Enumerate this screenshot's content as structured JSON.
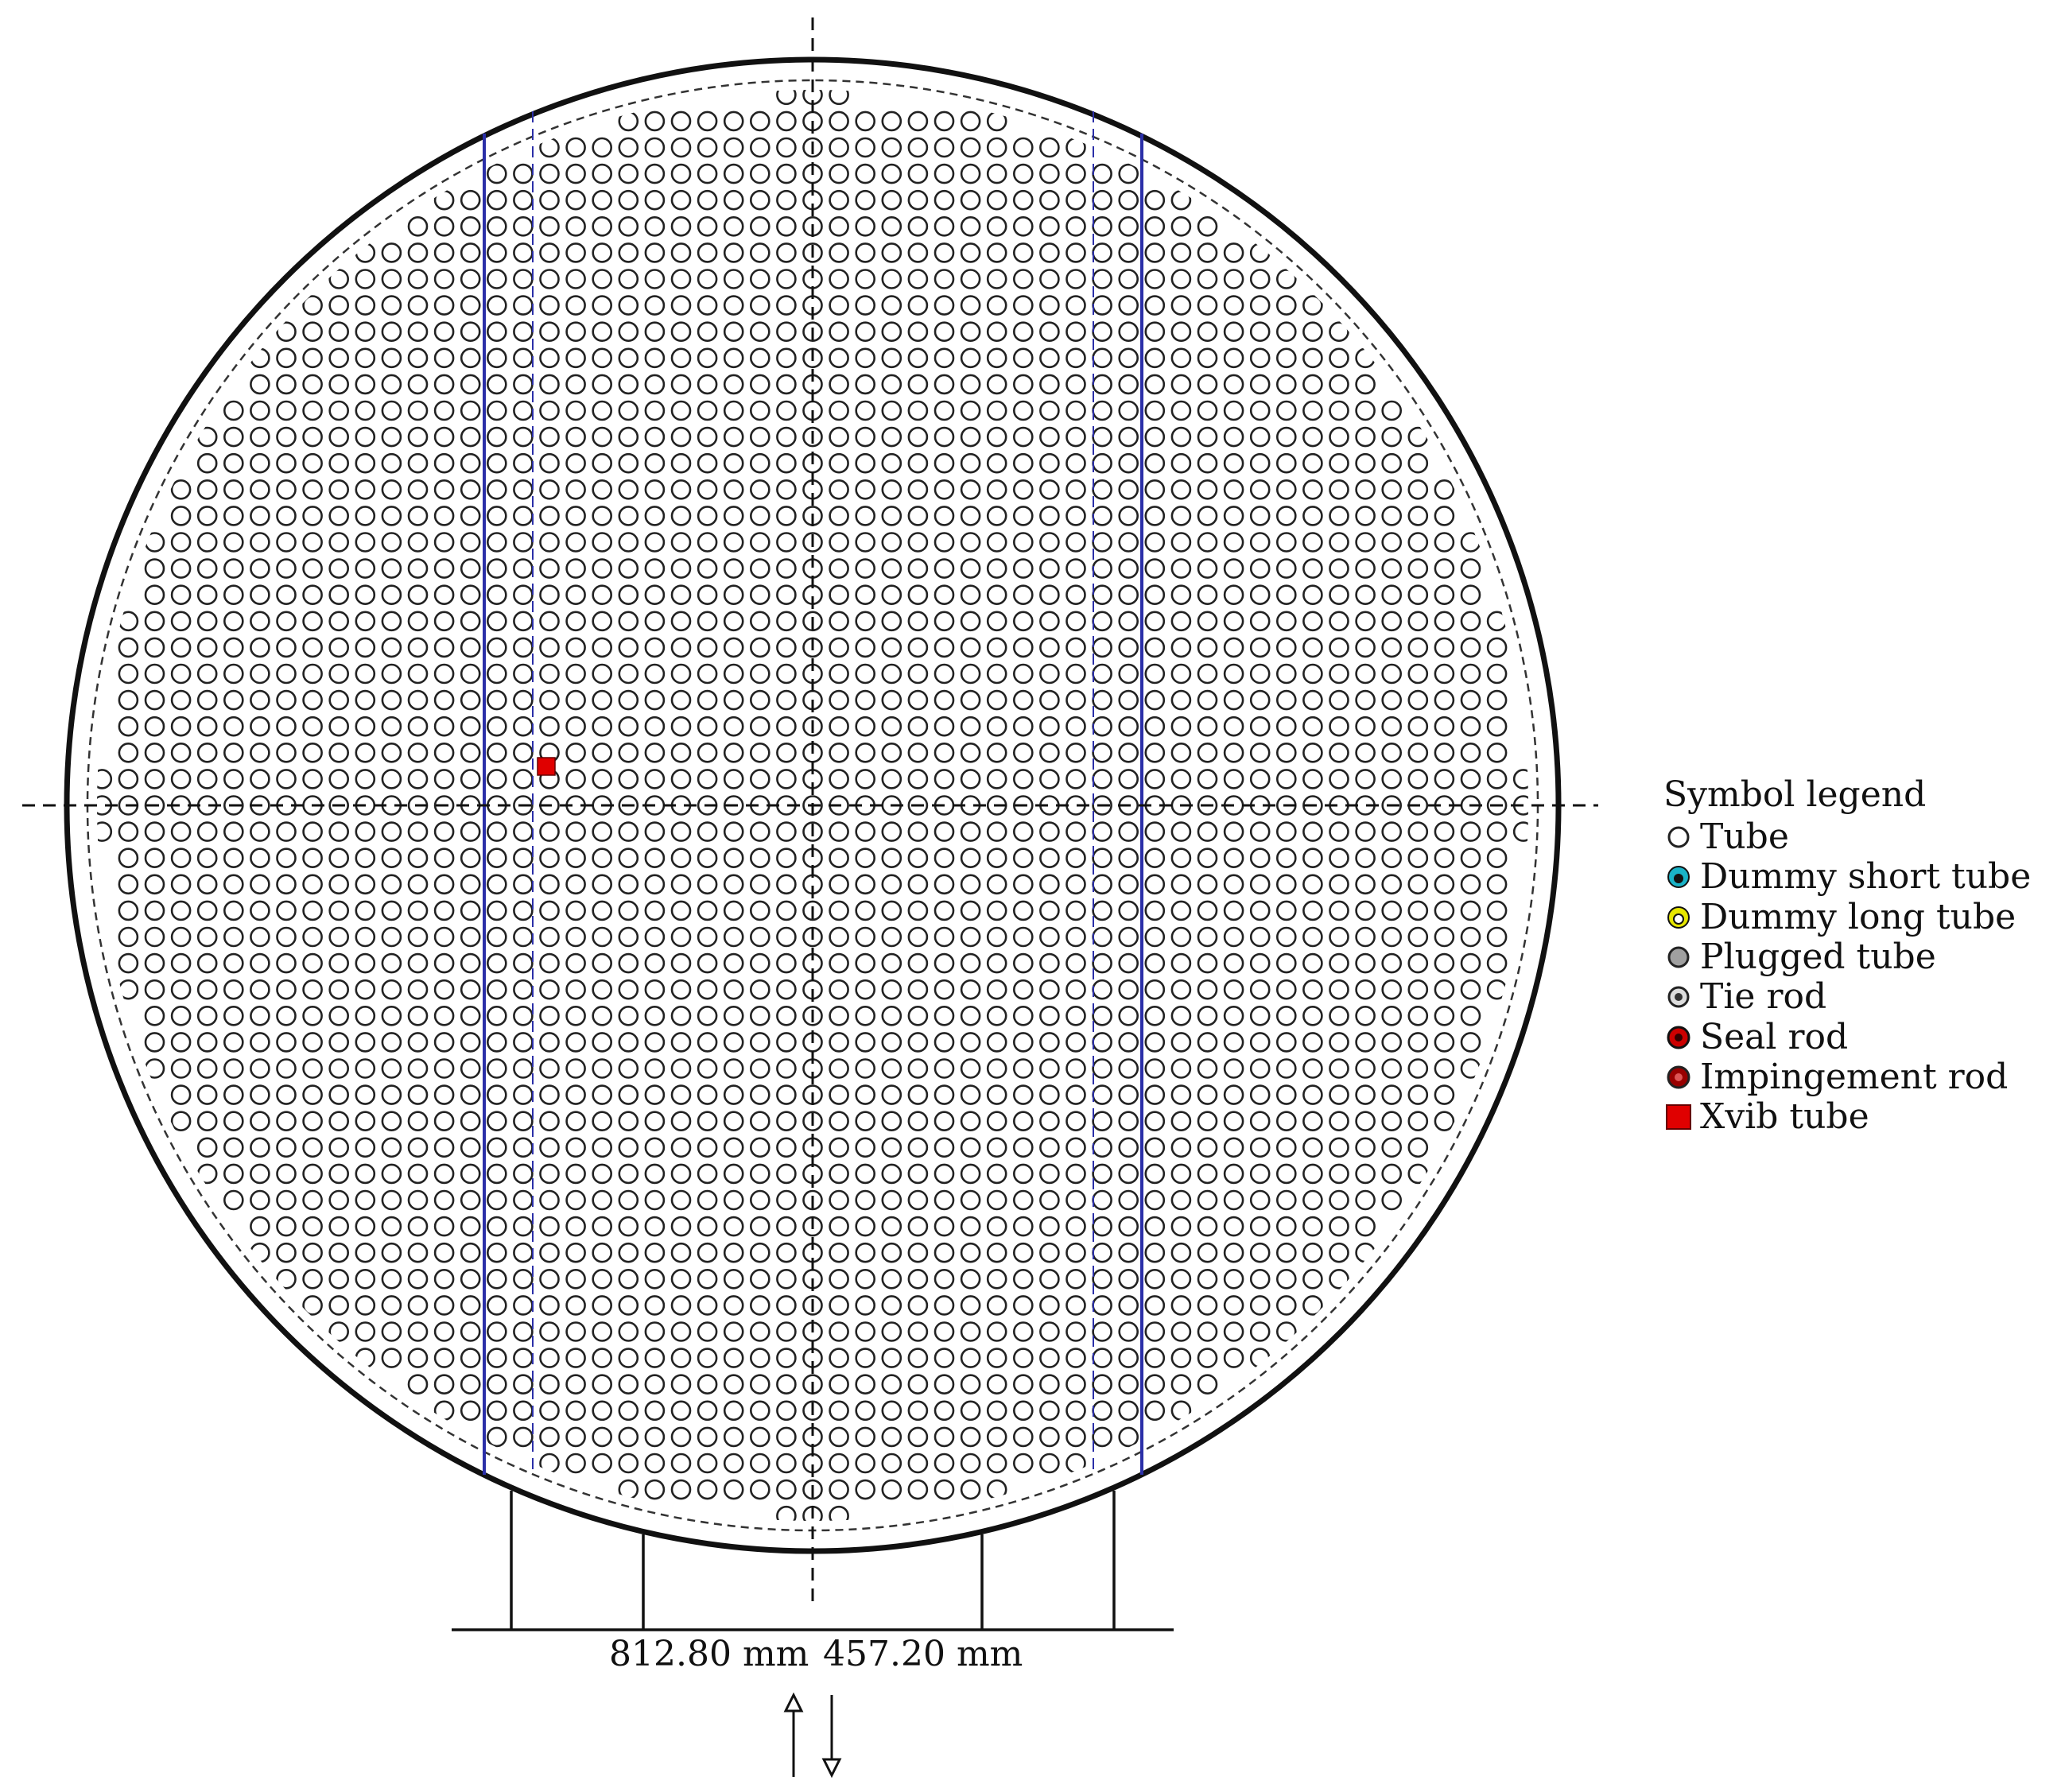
{
  "dimensions": {
    "left_label": "812.80 mm",
    "right_label": "457.20 mm"
  },
  "legend": {
    "title": "Symbol legend",
    "items": [
      {
        "key": "tube",
        "label": "Tube",
        "icon": "open-circle-icon",
        "color": "#ffffff"
      },
      {
        "key": "dummy-short",
        "label": "Dummy short tube",
        "icon": "cyan-filled-circle-icon",
        "color": "#19b3c7"
      },
      {
        "key": "dummy-long",
        "label": "Dummy long tube",
        "icon": "yellow-circle-icon",
        "color": "#e6e600"
      },
      {
        "key": "plugged",
        "label": "Plugged tube",
        "icon": "grey-filled-circle-icon",
        "color": "#a0a0a0"
      },
      {
        "key": "tie-rod",
        "label": "Tie rod",
        "icon": "ringed-dot-icon",
        "color": "#555555"
      },
      {
        "key": "seal-rod",
        "label": "Seal rod",
        "icon": "red-filled-circle-icon",
        "color": "#cc0000"
      },
      {
        "key": "impingement-rod",
        "label": "Impingement rod",
        "icon": "darkred-filled-circle-icon",
        "color": "#990000"
      },
      {
        "key": "xvib",
        "label": "Xvib tube",
        "icon": "red-square-icon",
        "color": "#e00000"
      }
    ]
  },
  "colors": {
    "outline": "#111111",
    "baffle": "#2b2fa8",
    "tube_stroke": "#222222",
    "xvib": "#e00000"
  }
}
